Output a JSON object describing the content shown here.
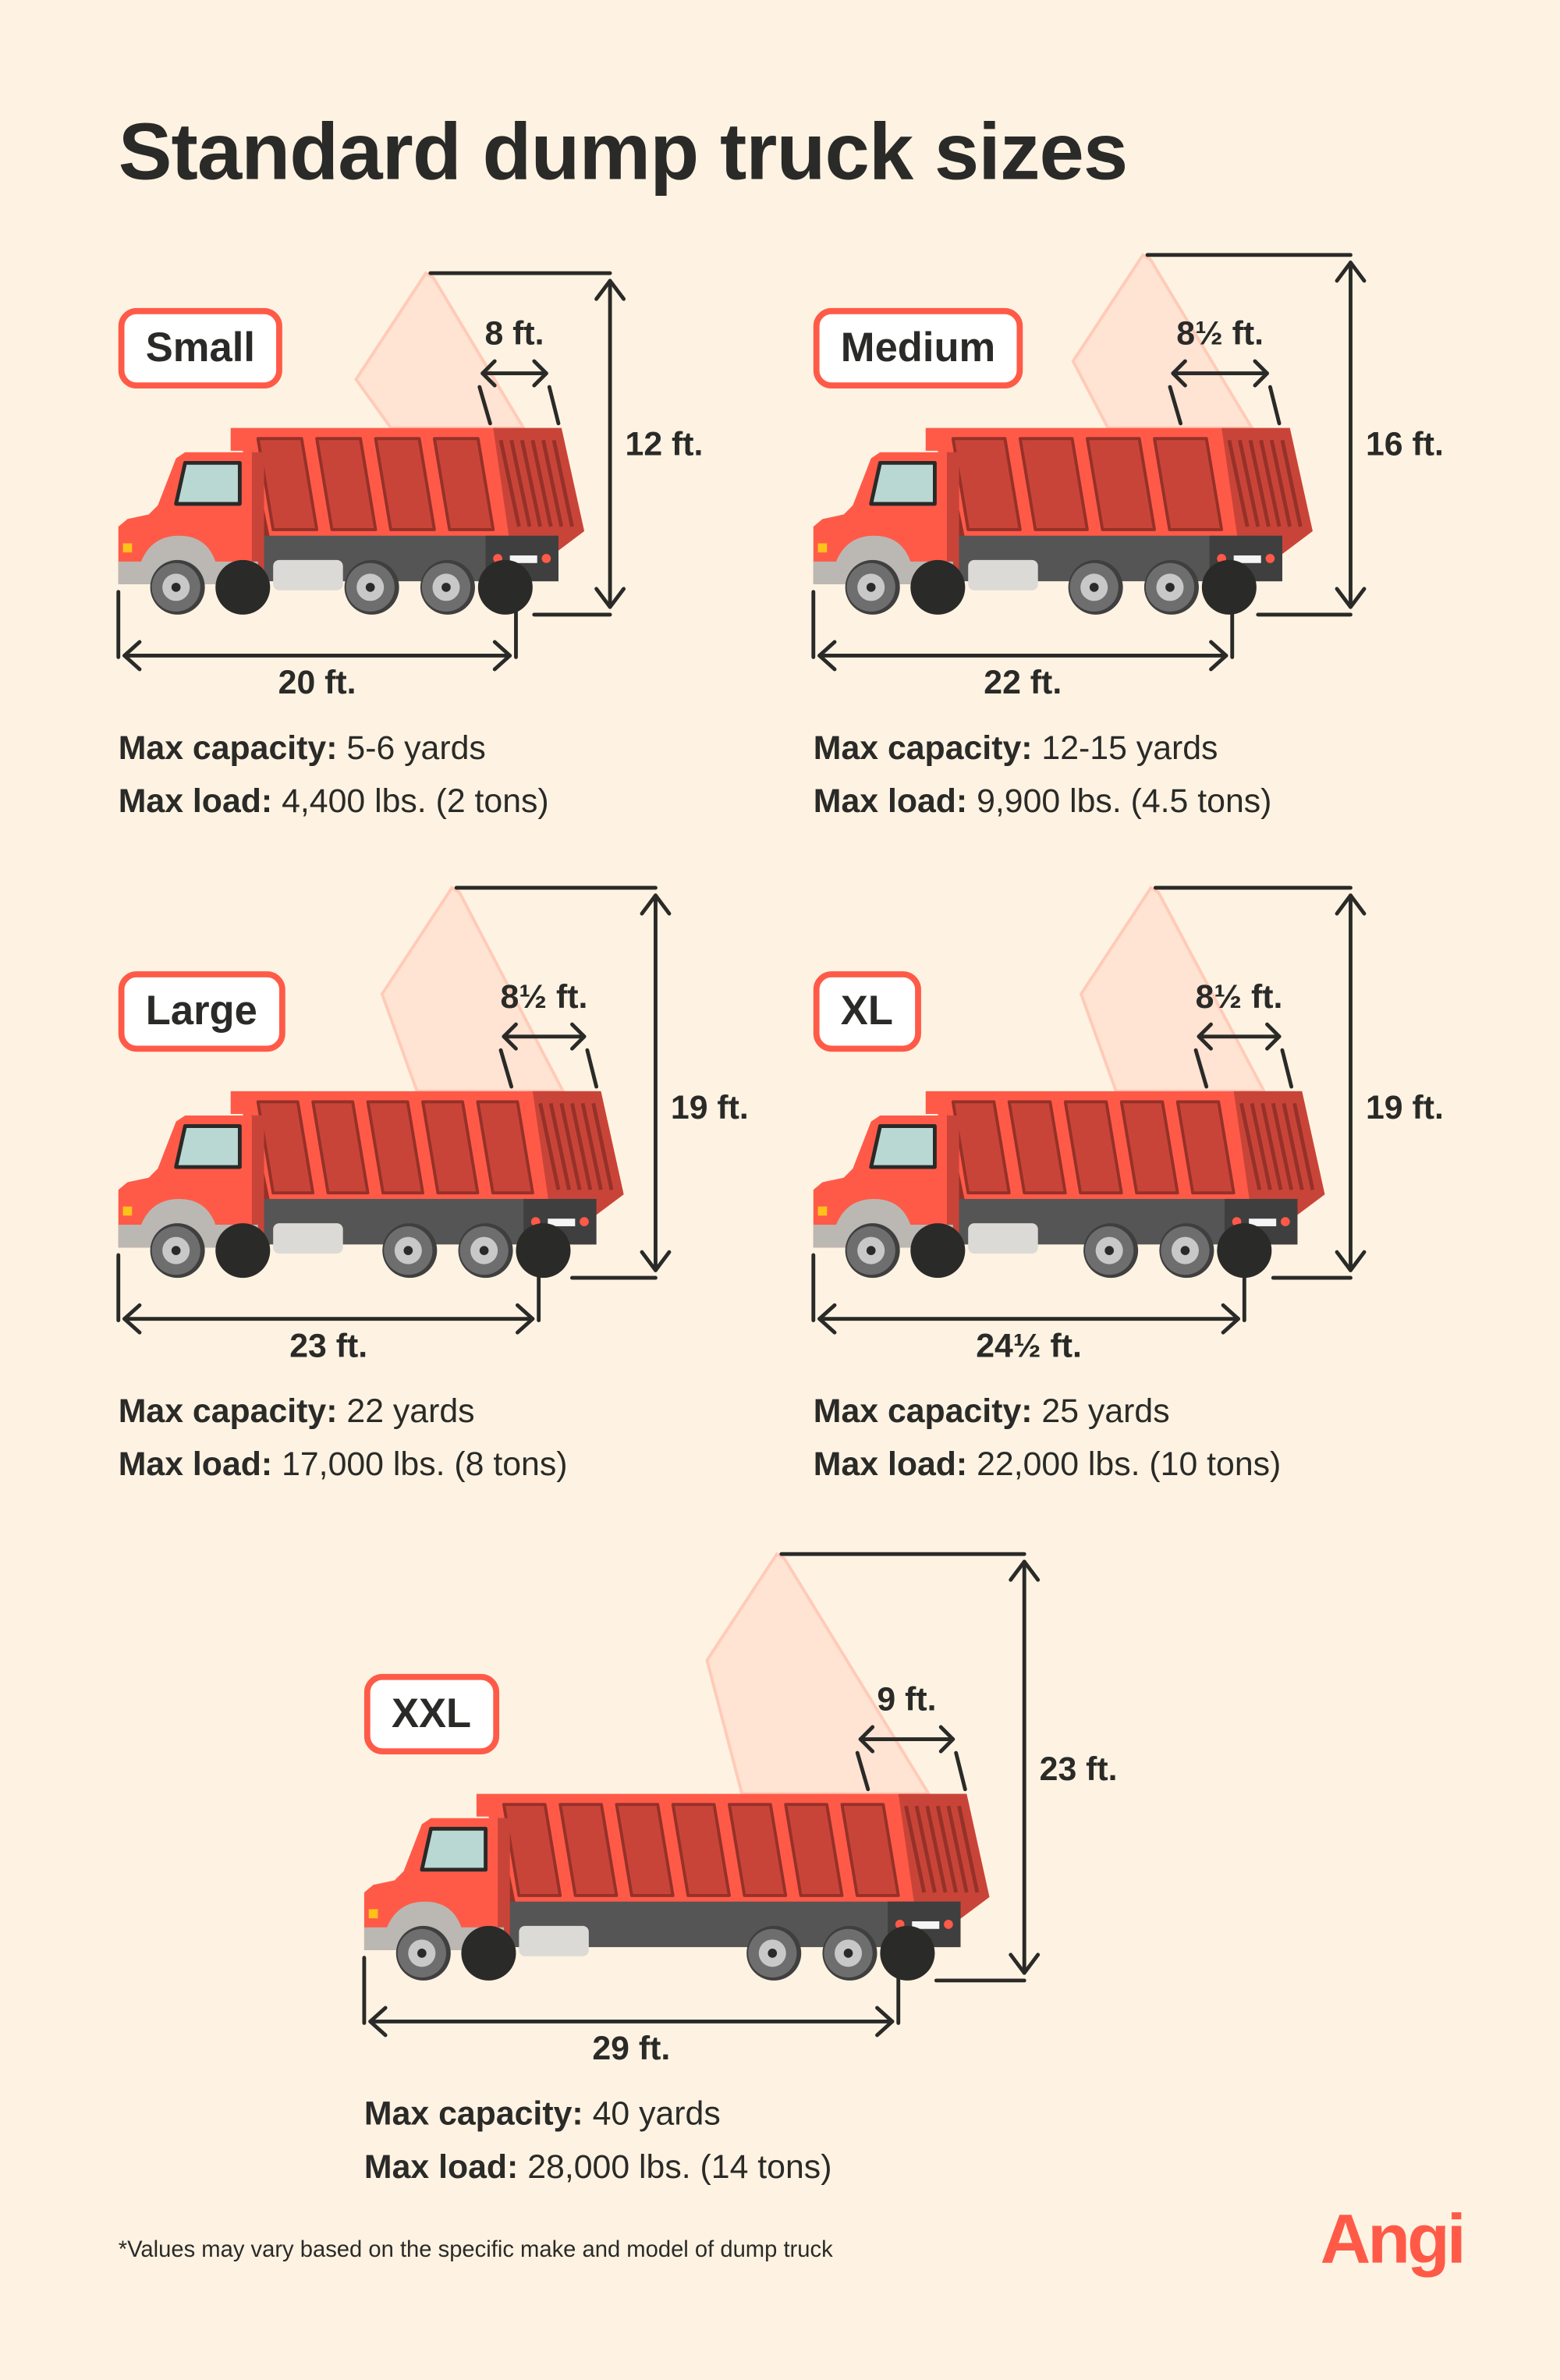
{
  "title": "Standard dump truck sizes",
  "trucks": [
    {
      "size": "Small",
      "bed_width": "8 ft.",
      "height": "12 ft.",
      "length": "20 ft.",
      "capacity_label": "Max capacity:",
      "capacity": "5-6 yards",
      "load_label": "Max load:",
      "load": "4,400 lbs. (2 tons)"
    },
    {
      "size": "Medium",
      "bed_width": "8½ ft.",
      "height": "16 ft.",
      "length": "22 ft.",
      "capacity_label": "Max capacity:",
      "capacity": "12-15 yards",
      "load_label": "Max load:",
      "load": "9,900 lbs. (4.5 tons)"
    },
    {
      "size": "Large",
      "bed_width": "8½ ft.",
      "height": "19 ft.",
      "length": "23 ft.",
      "capacity_label": "Max capacity:",
      "capacity": "22 yards",
      "load_label": "Max load:",
      "load": "17,000 lbs. (8 tons)"
    },
    {
      "size": "XL",
      "bed_width": "8½ ft.",
      "height": "19 ft.",
      "length": "24½ ft.",
      "capacity_label": "Max capacity:",
      "capacity": "25 yards",
      "load_label": "Max load:",
      "load": "22,000 lbs. (10 tons)"
    },
    {
      "size": "XXL",
      "bed_width": "9 ft.",
      "height": "23 ft.",
      "length": "29 ft.",
      "capacity_label": "Max capacity:",
      "capacity": "40 yards",
      "load_label": "Max load:",
      "load": "28,000 lbs. (14 tons)"
    }
  ],
  "footnote": "*Values may vary based on the specific make and model of dump truck",
  "logo": "Angi",
  "colors": {
    "background": "#fef3e2",
    "accent": "#ff5a48",
    "text": "#2a2a28"
  }
}
